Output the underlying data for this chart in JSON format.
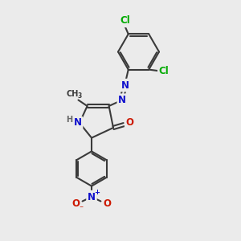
{
  "bg_color": "#ebebeb",
  "bond_color": "#3a3a3a",
  "bond_width": 1.5,
  "dbo": 0.07,
  "atom_colors": {
    "C": "#3a3a3a",
    "H": "#666666",
    "N": "#1010cc",
    "O": "#cc1800",
    "Cl": "#00aa00"
  },
  "fs": 8.5,
  "fs_s": 7.0
}
